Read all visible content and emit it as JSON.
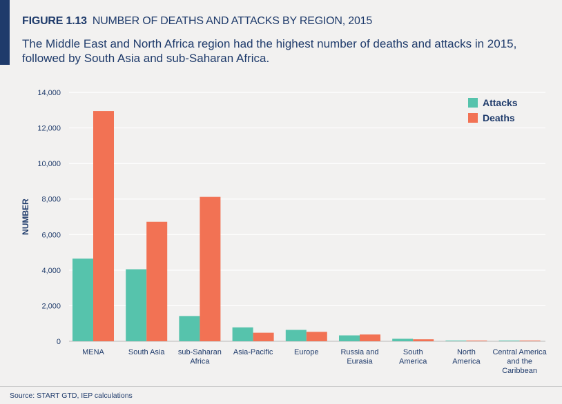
{
  "figure": {
    "label": "FIGURE 1.13",
    "title": "NUMBER OF DEATHS AND ATTACKS BY REGION, 2015",
    "subtitle": "The Middle East and North Africa region had the highest number of deaths and attacks in 2015, followed by South Asia and sub-Saharan Africa."
  },
  "source": "Source: START GTD, IEP calculations",
  "chart_data": {
    "type": "bar",
    "title": "",
    "xlabel": "",
    "ylabel": "NUMBER",
    "ylim": [
      0,
      14000
    ],
    "yticks": [
      0,
      2000,
      4000,
      6000,
      8000,
      10000,
      12000,
      14000
    ],
    "ytick_labels": [
      "0",
      "2,000",
      "4,000",
      "6,000",
      "8,000",
      "10,000",
      "12,000",
      "14,000"
    ],
    "grid": "horizontal",
    "legend_position": "top-right",
    "categories": [
      "MENA",
      "South Asia",
      "sub-Saharan Africa",
      "Asia-Pacific",
      "Europe",
      "Russia and Eurasia",
      "South America",
      "North America",
      "Central America and the Caribbean"
    ],
    "category_lines": [
      [
        "MENA"
      ],
      [
        "South  Asia"
      ],
      [
        "sub-Saharan",
        "Africa"
      ],
      [
        "Asia-Pacific"
      ],
      [
        "Europe"
      ],
      [
        "Russia and",
        "Eurasia"
      ],
      [
        "South",
        "America"
      ],
      [
        "North",
        "America"
      ],
      [
        "Central America",
        "and the",
        "Caribbean"
      ]
    ],
    "series": [
      {
        "name": "Attacks",
        "color": "#56c3ac",
        "values": [
          4650,
          4050,
          1420,
          780,
          640,
          330,
          140,
          40,
          40
        ]
      },
      {
        "name": "Deaths",
        "color": "#f27254",
        "values": [
          12950,
          6720,
          8120,
          480,
          530,
          380,
          110,
          40,
          40
        ]
      }
    ]
  }
}
